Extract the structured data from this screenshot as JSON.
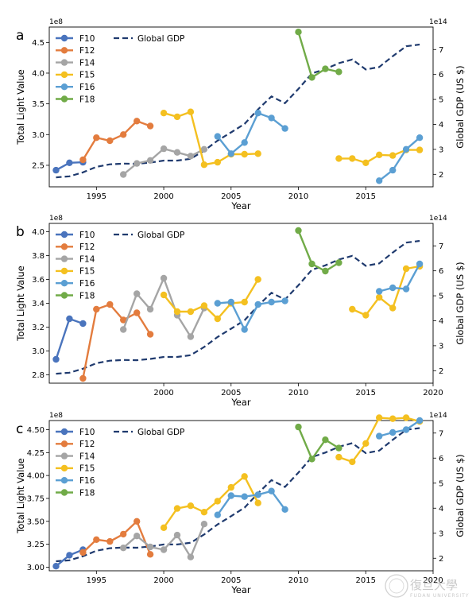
{
  "series_styles": [
    {
      "name": "F10",
      "color": "#4a74bd"
    },
    {
      "name": "F12",
      "color": "#e37c3e"
    },
    {
      "name": "F14",
      "color": "#a5a5a5"
    },
    {
      "name": "F15",
      "color": "#f4c020"
    },
    {
      "name": "F16",
      "color": "#5b9fd3"
    },
    {
      "name": "F18",
      "color": "#71ab48"
    }
  ],
  "gdp_color": "#1f3a6e",
  "watermark": {
    "name": "復旦大學",
    "sub": "FUDAN UNIVERSITY"
  },
  "chart_data": [
    {
      "label": "a",
      "type": "line",
      "xlabel": "Year",
      "ylabel": "Total Light Value",
      "y2label": "Global GDP (US $)",
      "y_multiplier": "1e8",
      "y2_multiplier": "1e14",
      "xlim": [
        1991.5,
        2020
      ],
      "ylim": [
        2.15,
        4.75
      ],
      "y2lim": [
        1.5,
        7.9
      ],
      "xticks": [
        1995,
        2000,
        2005,
        2010,
        2015
      ],
      "yticks": [
        2.5,
        3.0,
        3.5,
        4.0,
        4.5
      ],
      "y2ticks": [
        2,
        3,
        4,
        5,
        6,
        7
      ],
      "legend": "top-left",
      "gdp": {
        "name": "Global GDP",
        "x": [
          1992,
          1993,
          1994,
          1995,
          1996,
          1997,
          1998,
          1999,
          2000,
          2001,
          2002,
          2003,
          2004,
          2005,
          2006,
          2007,
          2008,
          2009,
          2010,
          2011,
          2012,
          2013,
          2014,
          2015,
          2016,
          2017,
          2018,
          2019
        ],
        "values": [
          1.88,
          1.92,
          2.08,
          2.3,
          2.4,
          2.43,
          2.42,
          2.47,
          2.55,
          2.55,
          2.62,
          2.95,
          3.35,
          3.68,
          4.02,
          4.6,
          5.12,
          4.85,
          5.42,
          6.04,
          6.22,
          6.45,
          6.6,
          6.2,
          6.3,
          6.73,
          7.13,
          7.2
        ]
      },
      "series": [
        {
          "name": "F10",
          "x": [
            1992,
            1993,
            1994
          ],
          "values": [
            2.42,
            2.54,
            2.55
          ]
        },
        {
          "name": "F12",
          "x": [
            1994,
            1995,
            1996,
            1997,
            1998,
            1999
          ],
          "values": [
            2.59,
            2.95,
            2.9,
            3.0,
            3.22,
            3.14
          ]
        },
        {
          "name": "F14",
          "x": [
            1997,
            1998,
            1999,
            2000,
            2001,
            2002,
            2003
          ],
          "values": [
            2.35,
            2.53,
            2.58,
            2.77,
            2.71,
            2.65,
            2.76
          ]
        },
        {
          "name": "F15",
          "x": [
            2000,
            2001,
            2002,
            2003,
            2004,
            2005,
            2006,
            2007,
            2013,
            2014,
            2015,
            2016,
            2017,
            2018,
            2019
          ],
          "values": [
            3.35,
            3.29,
            3.37,
            2.51,
            2.55,
            2.68,
            2.68,
            2.69,
            2.61,
            2.61,
            2.54,
            2.67,
            2.66,
            2.75,
            2.75
          ]
        },
        {
          "name": "F16",
          "x": [
            2004,
            2005,
            2006,
            2007,
            2008,
            2009,
            2016,
            2017,
            2018,
            2019
          ],
          "values": [
            2.97,
            2.69,
            2.87,
            3.35,
            3.27,
            3.1,
            2.25,
            2.42,
            2.76,
            2.95
          ]
        },
        {
          "name": "F18",
          "x": [
            2010,
            2011,
            2012,
            2013
          ],
          "values": [
            4.67,
            3.93,
            4.07,
            4.02
          ]
        }
      ]
    },
    {
      "label": "b",
      "type": "line",
      "xlabel": "Year",
      "ylabel": "Total Light Value",
      "y2label": "Global GDP (US $)",
      "y_multiplier": "1e8",
      "y2_multiplier": "1e14",
      "xlim": [
        1991.5,
        2020
      ],
      "ylim": [
        2.73,
        4.07
      ],
      "y2lim": [
        1.5,
        7.9
      ],
      "xticks": [
        2000,
        2005,
        2010,
        2015,
        2020
      ],
      "yticks": [
        2.8,
        3.0,
        3.2,
        3.4,
        3.6,
        3.8,
        4.0
      ],
      "y2ticks": [
        2,
        3,
        4,
        5,
        6,
        7
      ],
      "legend": "top-left",
      "gdp": {
        "name": "Global GDP",
        "x": [
          1992,
          1993,
          1994,
          1995,
          1996,
          1997,
          1998,
          1999,
          2000,
          2001,
          2002,
          2003,
          2004,
          2005,
          2006,
          2007,
          2008,
          2009,
          2010,
          2011,
          2012,
          2013,
          2014,
          2015,
          2016,
          2017,
          2018,
          2019
        ],
        "values": [
          1.88,
          1.92,
          2.08,
          2.3,
          2.4,
          2.43,
          2.42,
          2.47,
          2.55,
          2.55,
          2.62,
          2.95,
          3.35,
          3.68,
          4.02,
          4.6,
          5.12,
          4.85,
          5.42,
          6.04,
          6.22,
          6.45,
          6.6,
          6.2,
          6.3,
          6.73,
          7.13,
          7.2
        ]
      },
      "series": [
        {
          "name": "F10",
          "x": [
            1992,
            1993,
            1994
          ],
          "values": [
            2.93,
            3.27,
            3.23
          ]
        },
        {
          "name": "F12",
          "x": [
            1994,
            1995,
            1996,
            1997,
            1998,
            1999
          ],
          "values": [
            2.77,
            3.35,
            3.39,
            3.26,
            3.32,
            3.14
          ]
        },
        {
          "name": "F14",
          "x": [
            1997,
            1998,
            1999,
            2000,
            2001,
            2002,
            2003
          ],
          "values": [
            3.18,
            3.48,
            3.35,
            3.61,
            3.3,
            3.12,
            3.36
          ]
        },
        {
          "name": "F15",
          "x": [
            2000,
            2001,
            2002,
            2003,
            2004,
            2005,
            2006,
            2007,
            2014,
            2015,
            2016,
            2017,
            2018,
            2019
          ],
          "values": [
            3.47,
            3.33,
            3.33,
            3.38,
            3.27,
            3.4,
            3.41,
            3.6,
            3.35,
            3.3,
            3.45,
            3.36,
            3.69,
            3.71
          ]
        },
        {
          "name": "F16",
          "x": [
            2004,
            2005,
            2006,
            2007,
            2008,
            2009,
            2016,
            2017,
            2018,
            2019
          ],
          "values": [
            3.4,
            3.41,
            3.18,
            3.39,
            3.41,
            3.42,
            3.5,
            3.53,
            3.52,
            3.73
          ]
        },
        {
          "name": "F18",
          "x": [
            2010,
            2011,
            2012,
            2013
          ],
          "values": [
            4.01,
            3.73,
            3.67,
            3.74
          ]
        }
      ]
    },
    {
      "label": "c",
      "type": "line",
      "xlabel": "Year",
      "ylabel": "Total Light Value",
      "y2label": "Global GDP (US $)",
      "y_multiplier": "1e8",
      "y2_multiplier": "1e14",
      "xlim": [
        1991.5,
        2020
      ],
      "ylim": [
        2.96,
        4.6
      ],
      "y2lim": [
        1.5,
        7.5
      ],
      "xticks": [
        1995,
        2000,
        2005,
        2010,
        2015,
        2020
      ],
      "yticks": [
        3.0,
        3.25,
        3.5,
        3.75,
        4.0,
        4.25,
        4.5
      ],
      "y2ticks": [
        2,
        3,
        4,
        5,
        6,
        7
      ],
      "legend": "top-left",
      "gdp": {
        "name": "Global GDP",
        "x": [
          1992,
          1993,
          1994,
          1995,
          1996,
          1997,
          1998,
          1999,
          2000,
          2001,
          2002,
          2003,
          2004,
          2005,
          2006,
          2007,
          2008,
          2009,
          2010,
          2011,
          2012,
          2013,
          2014,
          2015,
          2016,
          2017,
          2018,
          2019
        ],
        "values": [
          1.88,
          1.92,
          2.08,
          2.3,
          2.4,
          2.43,
          2.42,
          2.47,
          2.55,
          2.55,
          2.62,
          2.95,
          3.35,
          3.68,
          4.02,
          4.6,
          5.12,
          4.85,
          5.42,
          6.04,
          6.22,
          6.45,
          6.6,
          6.2,
          6.3,
          6.73,
          7.13,
          7.2
        ]
      },
      "series": [
        {
          "name": "F10",
          "x": [
            1992,
            1993,
            1994
          ],
          "values": [
            3.01,
            3.13,
            3.19
          ]
        },
        {
          "name": "F12",
          "x": [
            1994,
            1995,
            1996,
            1997,
            1998,
            1999
          ],
          "values": [
            3.16,
            3.3,
            3.28,
            3.36,
            3.5,
            3.14
          ]
        },
        {
          "name": "F14",
          "x": [
            1997,
            1998,
            1999,
            2000,
            2001,
            2002,
            2003
          ],
          "values": [
            3.21,
            3.34,
            3.22,
            3.19,
            3.35,
            3.11,
            3.47
          ]
        },
        {
          "name": "F15",
          "x": [
            2000,
            2001,
            2002,
            2003,
            2004,
            2005,
            2006,
            2007,
            2013,
            2014,
            2015,
            2016,
            2017,
            2018,
            2019
          ],
          "values": [
            3.43,
            3.64,
            3.67,
            3.6,
            3.72,
            3.87,
            3.99,
            3.7,
            4.2,
            4.15,
            4.35,
            4.63,
            4.62,
            4.63,
            4.59
          ]
        },
        {
          "name": "F16",
          "x": [
            2004,
            2005,
            2006,
            2007,
            2008,
            2009,
            2016,
            2017,
            2018,
            2019
          ],
          "values": [
            3.57,
            3.78,
            3.77,
            3.79,
            3.83,
            3.63,
            4.43,
            4.47,
            4.5,
            4.6
          ]
        },
        {
          "name": "F18",
          "x": [
            2010,
            2011,
            2012,
            2013
          ],
          "values": [
            4.53,
            4.18,
            4.39,
            4.3
          ]
        }
      ]
    }
  ]
}
